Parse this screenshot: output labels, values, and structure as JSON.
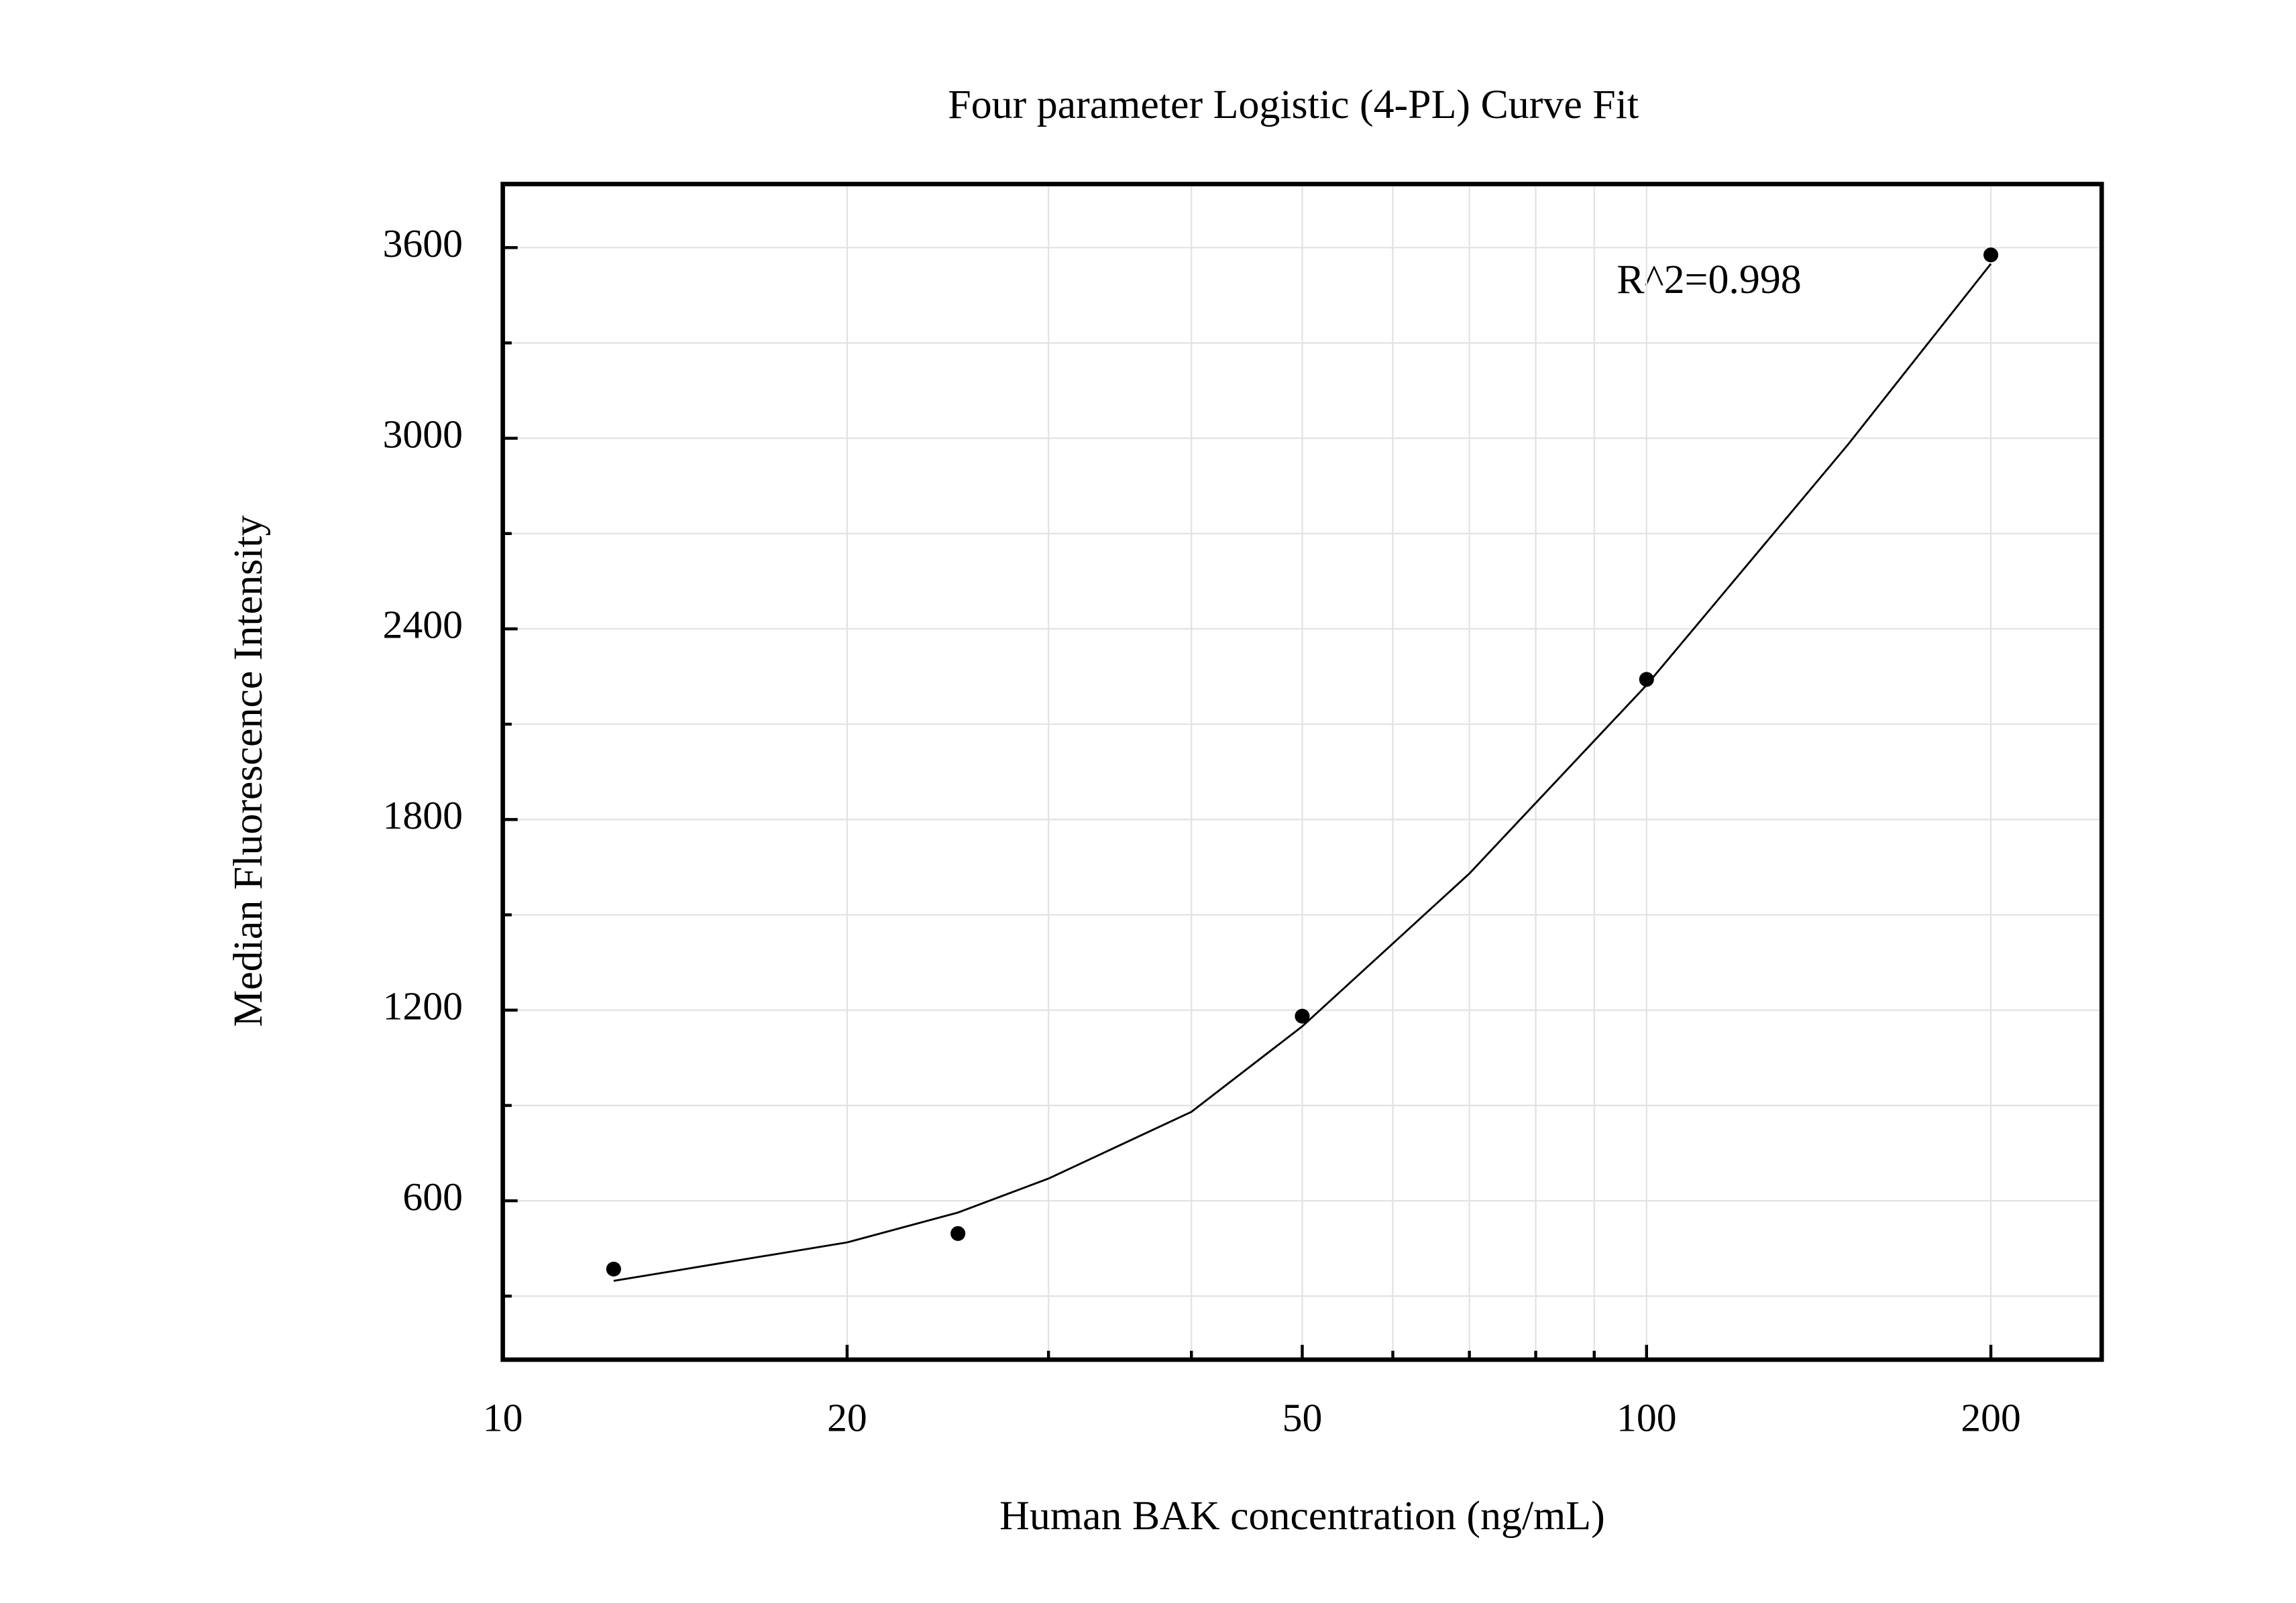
{
  "chart_data": {
    "type": "scatter",
    "title": "Four parameter Logistic (4-PL) Curve Fit",
    "x_label": "Human BAK concentration (ng/mL)",
    "y_label": "Median Fluorescence Intensity",
    "annotation": "R^2=0.998",
    "x_scale": "log",
    "grid": true,
    "xlim": [
      10,
      250
    ],
    "xticks": [
      10,
      20,
      50,
      100,
      200
    ],
    "xminorticks": [
      30,
      40,
      60,
      70,
      80,
      90
    ],
    "ylim": [
      100,
      3800
    ],
    "yticks": [
      600,
      1200,
      1800,
      2400,
      3000,
      3600
    ],
    "yminorticks": [
      300,
      900,
      1500,
      2100,
      2700,
      3300
    ],
    "series": [
      {
        "color": "#000000",
        "x": [
          12.5,
          25,
          50,
          100,
          200
        ],
        "values": [
          385,
          497,
          1181,
          2241,
          3577
        ]
      }
    ],
    "fit_curve": {
      "color": "#000000",
      "x": [
        12.5,
        15,
        20,
        25,
        30,
        40,
        50,
        70,
        100,
        150,
        200
      ],
      "values": [
        348,
        395,
        469,
        563,
        670,
        880,
        1149,
        1630,
        2223,
        2980,
        3549
      ]
    }
  }
}
